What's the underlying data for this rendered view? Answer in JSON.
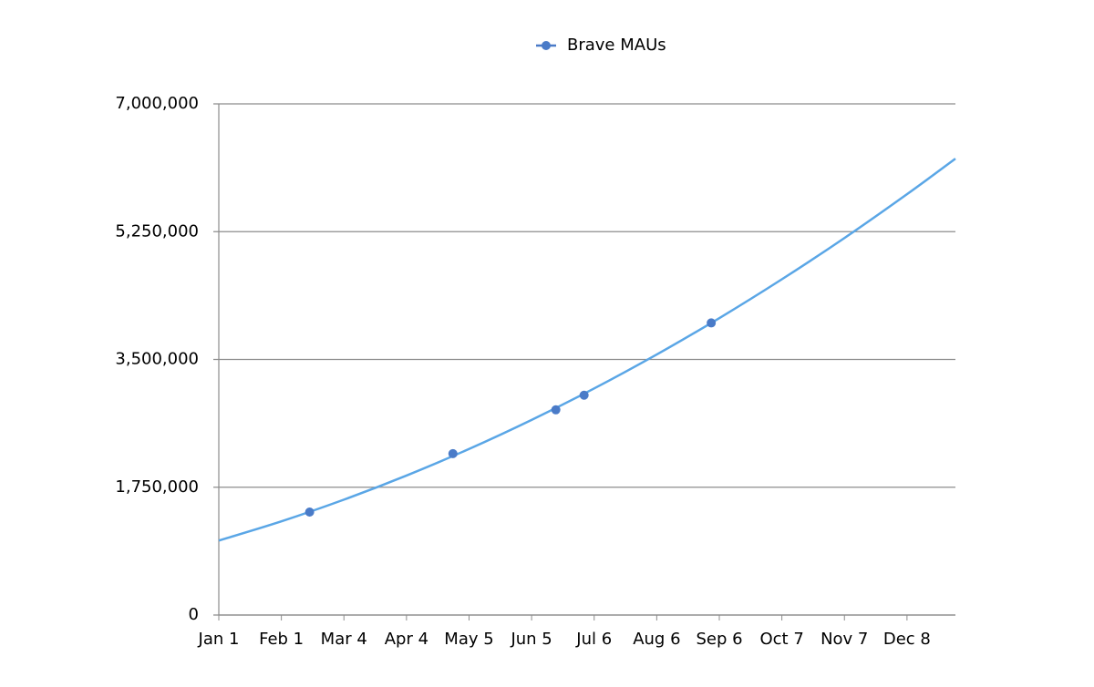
{
  "chart_data": {
    "type": "scatter",
    "x": [
      45,
      116,
      167,
      181,
      244
    ],
    "series": [
      {
        "name": "Brave MAUs",
        "color": "#4a7bc8",
        "values": [
          1410000,
          2210000,
          2810000,
          3010000,
          4000000
        ]
      }
    ],
    "trendline": {
      "color": "#5aa6e6",
      "x": [
        0,
        31,
        62,
        93,
        124,
        155,
        186,
        217,
        248,
        279,
        310,
        341,
        365
      ],
      "values": [
        1020000,
        1283000,
        1580000,
        1910000,
        2274000,
        2672000,
        3103000,
        3568000,
        4066000,
        4598000,
        5163000,
        5763000,
        6250000
      ]
    },
    "xlim": [
      0,
      365
    ],
    "xticks": [
      {
        "value": 0,
        "label": "Jan 1"
      },
      {
        "value": 31,
        "label": "Feb 1"
      },
      {
        "value": 62,
        "label": "Mar 4"
      },
      {
        "value": 93,
        "label": "Apr 4"
      },
      {
        "value": 124,
        "label": "May 5"
      },
      {
        "value": 155,
        "label": "Jun 5"
      },
      {
        "value": 186,
        "label": "Jul 6"
      },
      {
        "value": 217,
        "label": "Aug 6"
      },
      {
        "value": 248,
        "label": "Sep 6"
      },
      {
        "value": 279,
        "label": "Oct 7"
      },
      {
        "value": 310,
        "label": "Nov 7"
      },
      {
        "value": 341,
        "label": "Dec 8"
      }
    ],
    "ylim": [
      0,
      7000000
    ],
    "yticks": [
      0,
      {
        "value": 1750000,
        "label": "1,750,000"
      },
      {
        "value": 3500000,
        "label": "3,500,000"
      },
      {
        "value": 5250000,
        "label": "5,250,000"
      },
      {
        "value": 7000000,
        "label": "7,000,000"
      }
    ],
    "grid": true,
    "legend": "top"
  }
}
